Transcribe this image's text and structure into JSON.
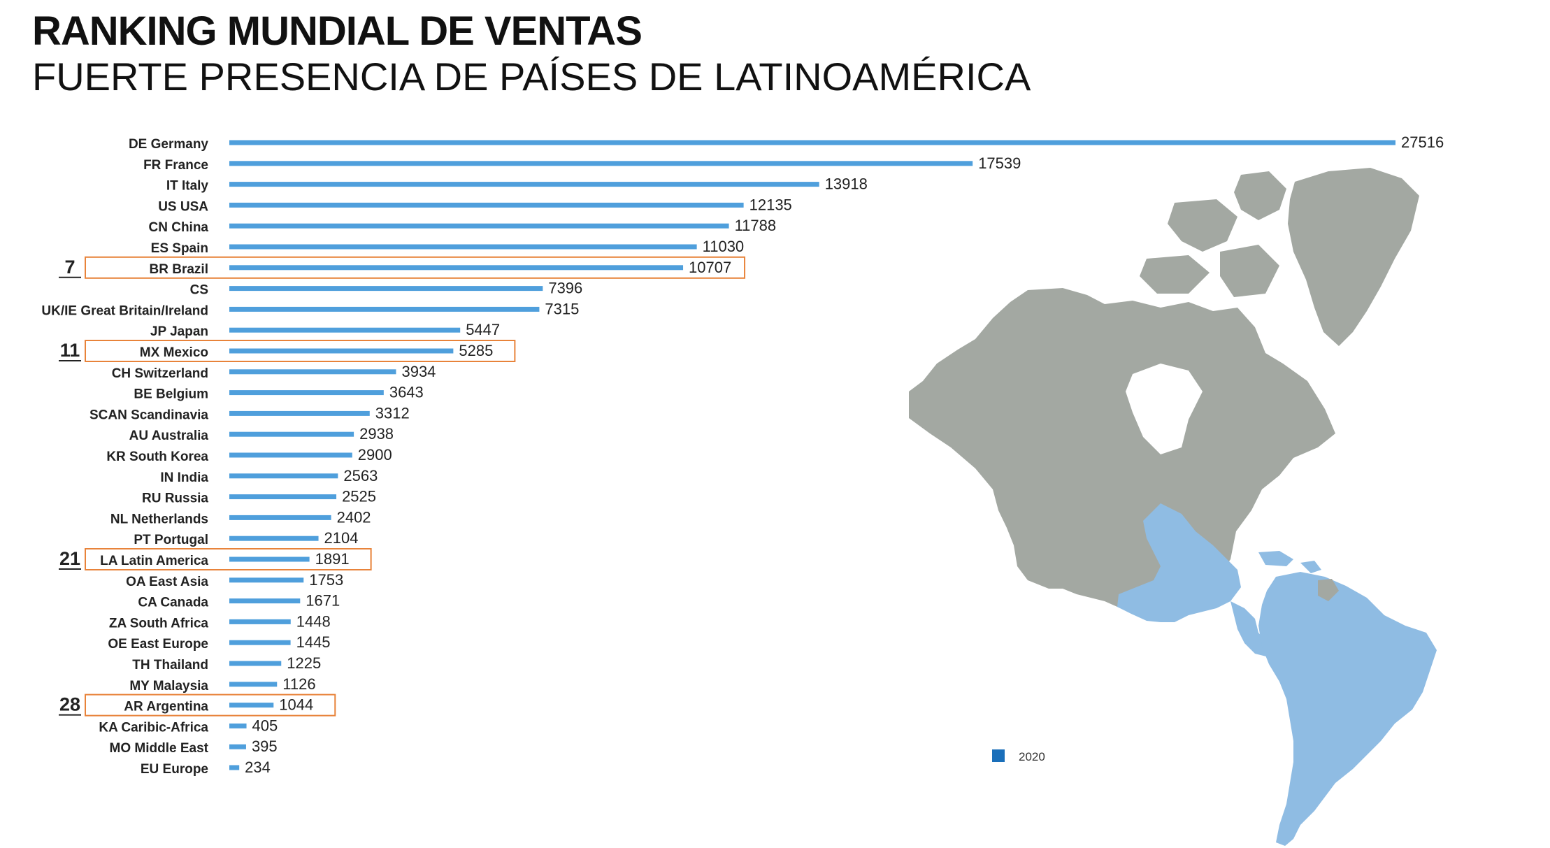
{
  "header": {
    "title": "RANKING MUNDIAL DE VENTAS",
    "subtitle": "FUERTE PRESENCIA DE PAÍSES DE LATINOAMÉRICA"
  },
  "colors": {
    "bar": "#4f9fdc",
    "highlight": "#e8833a",
    "legend": "#1a6fba",
    "map_gray": "#a3a8a2",
    "map_blue": "#8fbce3"
  },
  "chart_data": {
    "type": "bar",
    "orientation": "horizontal",
    "categories": [
      "DE Germany",
      "FR France",
      "IT Italy",
      "US USA",
      "CN China",
      "ES Spain",
      "BR Brazil",
      "CS",
      "UK/IE Great Britain/Ireland",
      "JP Japan",
      "MX Mexico",
      "CH Switzerland",
      "BE Belgium",
      "SCAN Scandinavia",
      "AU Australia",
      "KR South Korea",
      "IN India",
      "RU Russia",
      "NL Netherlands",
      "PT Portugal",
      "LA Latin America",
      "OA East Asia",
      "CA Canada",
      "ZA South Africa",
      "OE East Europe",
      "TH Thailand",
      "MY Malaysia",
      "AR Argentina",
      "KA Caribic-Africa",
      "MO Middle East",
      "EU Europe"
    ],
    "series": [
      {
        "name": "2020",
        "values": [
          27516,
          17539,
          13918,
          12135,
          11788,
          11030,
          10707,
          7396,
          7315,
          5447,
          5285,
          3934,
          3643,
          3312,
          2938,
          2900,
          2563,
          2525,
          2402,
          2104,
          1891,
          1753,
          1671,
          1448,
          1445,
          1225,
          1126,
          1044,
          405,
          395,
          234
        ]
      }
    ],
    "highlights": [
      {
        "category": "BR Brazil",
        "rank": "7"
      },
      {
        "category": "MX Mexico",
        "rank": "11"
      },
      {
        "category": "LA Latin America",
        "rank": "21"
      },
      {
        "category": "AR Argentina",
        "rank": "28"
      }
    ],
    "xlim": [
      0,
      27516
    ],
    "grid": false,
    "legend": {
      "position": "bottom-right",
      "entries": [
        "2020"
      ]
    }
  }
}
